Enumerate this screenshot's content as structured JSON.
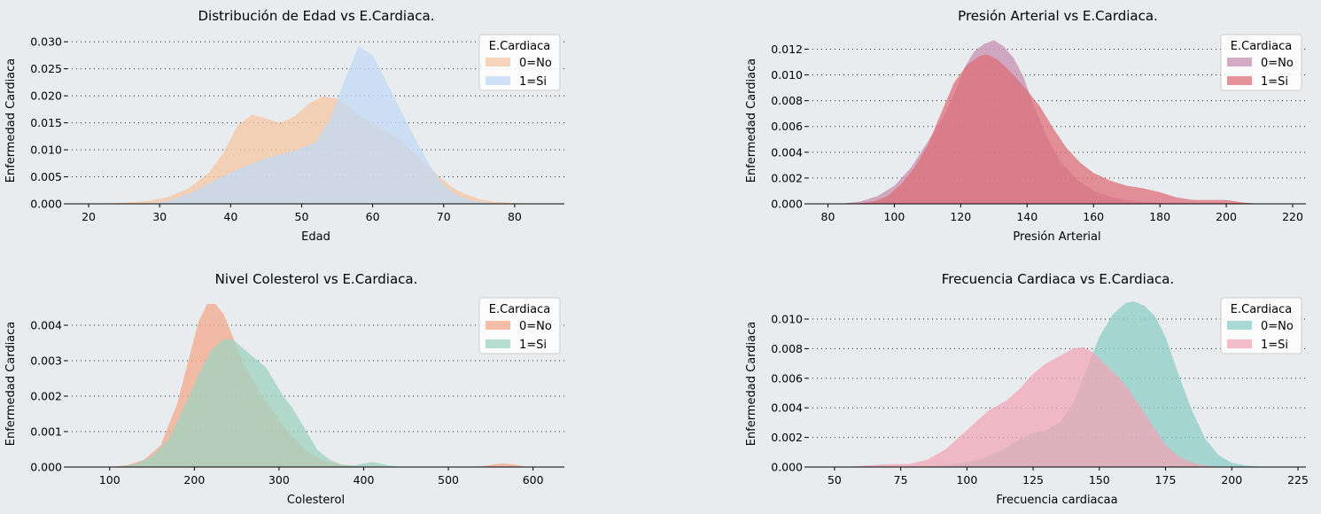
{
  "background": "#e9ecef",
  "chart_data": [
    {
      "type": "area",
      "title": "Distribución de Edad vs E.Cardiaca.",
      "xlabel": "Edad",
      "ylabel": "Enfermedad Cardiaca",
      "xlim": [
        17,
        87
      ],
      "ylim": [
        0,
        0.0315
      ],
      "xticks": [
        20,
        30,
        40,
        50,
        60,
        70,
        80
      ],
      "yticks": [
        0.0,
        0.005,
        0.01,
        0.015,
        0.02,
        0.025,
        0.03
      ],
      "ytick_decimals": 3,
      "grid": "horizontal dotted",
      "legend": {
        "title": "E.Cardiaca",
        "placement": "top-right"
      },
      "series": [
        {
          "name": "0=No",
          "color": "#f6c7a1",
          "x": [
            22,
            25,
            28,
            31,
            34,
            37,
            39,
            41,
            43,
            45,
            47,
            49,
            51,
            53,
            55,
            57,
            59,
            61,
            63,
            65,
            67,
            69,
            71,
            73,
            75,
            77,
            79,
            82,
            85
          ],
          "y": [
            0,
            0.0002,
            0.0005,
            0.0012,
            0.0028,
            0.0058,
            0.0095,
            0.0145,
            0.0165,
            0.0158,
            0.015,
            0.0162,
            0.0185,
            0.0199,
            0.0195,
            0.0175,
            0.0155,
            0.014,
            0.0125,
            0.0105,
            0.008,
            0.0055,
            0.0032,
            0.0018,
            0.0009,
            0.0004,
            0.0002,
            5e-05,
            0
          ]
        },
        {
          "name": "1=Si",
          "color": "#c1daf4",
          "x": [
            28,
            31,
            34,
            37,
            40,
            43,
            46,
            49,
            52,
            54,
            56,
            58,
            60,
            62,
            64,
            66,
            68,
            70,
            72,
            74,
            76,
            78,
            80
          ],
          "y": [
            0,
            0.0005,
            0.0018,
            0.0038,
            0.0058,
            0.0075,
            0.0088,
            0.0098,
            0.0115,
            0.0155,
            0.0228,
            0.0292,
            0.0275,
            0.0225,
            0.0172,
            0.012,
            0.0072,
            0.0035,
            0.0015,
            0.0006,
            0.0002,
            5e-05,
            0
          ]
        }
      ]
    },
    {
      "type": "area",
      "title": "Presión Arterial vs E.Cardiaca.",
      "xlabel": "Presión Arterial",
      "ylabel": "Enfermedad Cardiaca",
      "xlim": [
        74,
        224
      ],
      "ylim": [
        0,
        0.0132
      ],
      "xticks": [
        80,
        100,
        120,
        140,
        160,
        180,
        200,
        220
      ],
      "yticks": [
        0.0,
        0.002,
        0.004,
        0.006,
        0.008,
        0.01,
        0.012
      ],
      "ytick_decimals": 3,
      "grid": "horizontal dotted",
      "legend": {
        "title": "E.Cardiaca",
        "placement": "top-right"
      },
      "series": [
        {
          "name": "0=No",
          "color": "#c590b0",
          "x": [
            84,
            90,
            95,
            100,
            105,
            110,
            115,
            118,
            121,
            124,
            127,
            130,
            133,
            136,
            139,
            142,
            146,
            150,
            155,
            160,
            166,
            172,
            178,
            184,
            190,
            196
          ],
          "y": [
            0,
            0.0002,
            0.0006,
            0.0014,
            0.0028,
            0.0048,
            0.0068,
            0.0085,
            0.0105,
            0.0118,
            0.0124,
            0.0127,
            0.0122,
            0.0113,
            0.0098,
            0.0076,
            0.0052,
            0.0033,
            0.0019,
            0.001,
            0.0005,
            0.0002,
            0.0001,
            4e-05,
            1e-05,
            0
          ]
        },
        {
          "name": "1=Si",
          "color": "#de6f78",
          "x": [
            88,
            94,
            98,
            102,
            106,
            110,
            114,
            118,
            122,
            126,
            128,
            131,
            134,
            137,
            140,
            144,
            148,
            152,
            156,
            160,
            165,
            170,
            175,
            180,
            185,
            190,
            195,
            200,
            205,
            210
          ],
          "y": [
            0,
            0.0002,
            0.0006,
            0.0015,
            0.0028,
            0.0045,
            0.007,
            0.0094,
            0.0108,
            0.0115,
            0.0116,
            0.0112,
            0.0105,
            0.0097,
            0.0088,
            0.0075,
            0.0058,
            0.0043,
            0.0032,
            0.0024,
            0.0018,
            0.0014,
            0.0012,
            0.0009,
            0.0005,
            0.0003,
            0.0003,
            0.0003,
            0.0001,
            0
          ]
        }
      ]
    },
    {
      "type": "area",
      "title": "Nivel Colesterol vs E.Cardiaca.",
      "xlabel": "Colesterol",
      "ylabel": "Enfermedad Cardiaca",
      "xlim": [
        50,
        637
      ],
      "ylim": [
        0,
        0.0048
      ],
      "xticks": [
        100,
        200,
        300,
        400,
        500,
        600
      ],
      "yticks": [
        0.0,
        0.001,
        0.002,
        0.003,
        0.004
      ],
      "ytick_decimals": 3,
      "grid": "horizontal dotted",
      "legend": {
        "title": "E.Cardiaca",
        "placement": "top-right"
      },
      "series": [
        {
          "name": "0=No",
          "color": "#f3a98c",
          "x": [
            100,
            120,
            140,
            160,
            180,
            195,
            205,
            215,
            225,
            235,
            245,
            255,
            265,
            280,
            295,
            310,
            330,
            350,
            370,
            390,
            410,
            430,
            450,
            480,
            510,
            540,
            555,
            565,
            575,
            590,
            600
          ],
          "y": [
            0,
            5e-05,
            0.0002,
            0.0006,
            0.0018,
            0.0032,
            0.0041,
            0.0046,
            0.0046,
            0.0043,
            0.0037,
            0.0031,
            0.0026,
            0.002,
            0.0015,
            0.001,
            0.0005,
            0.0002,
            8e-05,
            3e-05,
            2e-05,
            1e-05,
            0,
            0,
            0,
            2e-05,
            8e-05,
            0.0001,
            8e-05,
            2e-05,
            0
          ]
        },
        {
          "name": "1=Si",
          "color": "#9ed3bf",
          "x": [
            110,
            130,
            150,
            170,
            190,
            205,
            220,
            235,
            245,
            255,
            265,
            275,
            285,
            295,
            305,
            315,
            325,
            335,
            345,
            360,
            375,
            390,
            400,
            410,
            420,
            430,
            445
          ],
          "y": [
            0,
            8e-05,
            0.0003,
            0.0008,
            0.0018,
            0.0026,
            0.0033,
            0.0036,
            0.0036,
            0.0034,
            0.0032,
            0.003,
            0.0028,
            0.0024,
            0.002,
            0.0017,
            0.0013,
            0.0009,
            0.0005,
            0.0002,
            6e-05,
            5e-05,
            0.0001,
            0.00014,
            0.0001,
            4e-05,
            0
          ]
        }
      ]
    },
    {
      "type": "area",
      "title": "Frecuencia Cardiaca vs E.Cardiaca.",
      "xlabel": "Frecuencia cardiacaa",
      "ylabel": "Enfermedad Cardiaca",
      "xlim": [
        40,
        228
      ],
      "ylim": [
        0,
        0.0115
      ],
      "xticks": [
        50,
        75,
        100,
        125,
        150,
        175,
        200,
        225
      ],
      "yticks": [
        0.0,
        0.002,
        0.004,
        0.006,
        0.008,
        0.01
      ],
      "ytick_decimals": 3,
      "grid": "horizontal dotted",
      "legend": {
        "title": "E.Cardiaca",
        "placement": "top-right"
      },
      "series": [
        {
          "name": "0=No",
          "color": "#8ecdc6",
          "x": [
            80,
            90,
            100,
            108,
            115,
            120,
            125,
            130,
            135,
            140,
            145,
            150,
            155,
            160,
            163,
            167,
            171,
            175,
            180,
            185,
            190,
            195,
            200,
            205,
            210,
            215
          ],
          "y": [
            0,
            0.0001,
            0.0003,
            0.0007,
            0.0013,
            0.0019,
            0.0023,
            0.0025,
            0.003,
            0.0043,
            0.0065,
            0.0088,
            0.0103,
            0.0111,
            0.0112,
            0.0109,
            0.0102,
            0.0088,
            0.0062,
            0.0038,
            0.0019,
            0.0008,
            0.0003,
            0.0001,
            3e-05,
            0
          ]
        },
        {
          "name": "1=Si",
          "color": "#f2a5b5",
          "x": [
            55,
            62,
            70,
            78,
            85,
            92,
            100,
            108,
            115,
            120,
            125,
            130,
            135,
            140,
            144,
            148,
            152,
            156,
            160,
            165,
            170,
            175,
            180,
            185,
            190,
            195
          ],
          "y": [
            0,
            0.0001,
            0.0002,
            0.0002,
            0.0005,
            0.0012,
            0.0025,
            0.0038,
            0.0045,
            0.0053,
            0.0063,
            0.007,
            0.0075,
            0.008,
            0.0081,
            0.0077,
            0.007,
            0.0063,
            0.0055,
            0.0042,
            0.0028,
            0.0015,
            0.0007,
            0.0003,
            0.0001,
            0
          ]
        }
      ]
    }
  ]
}
